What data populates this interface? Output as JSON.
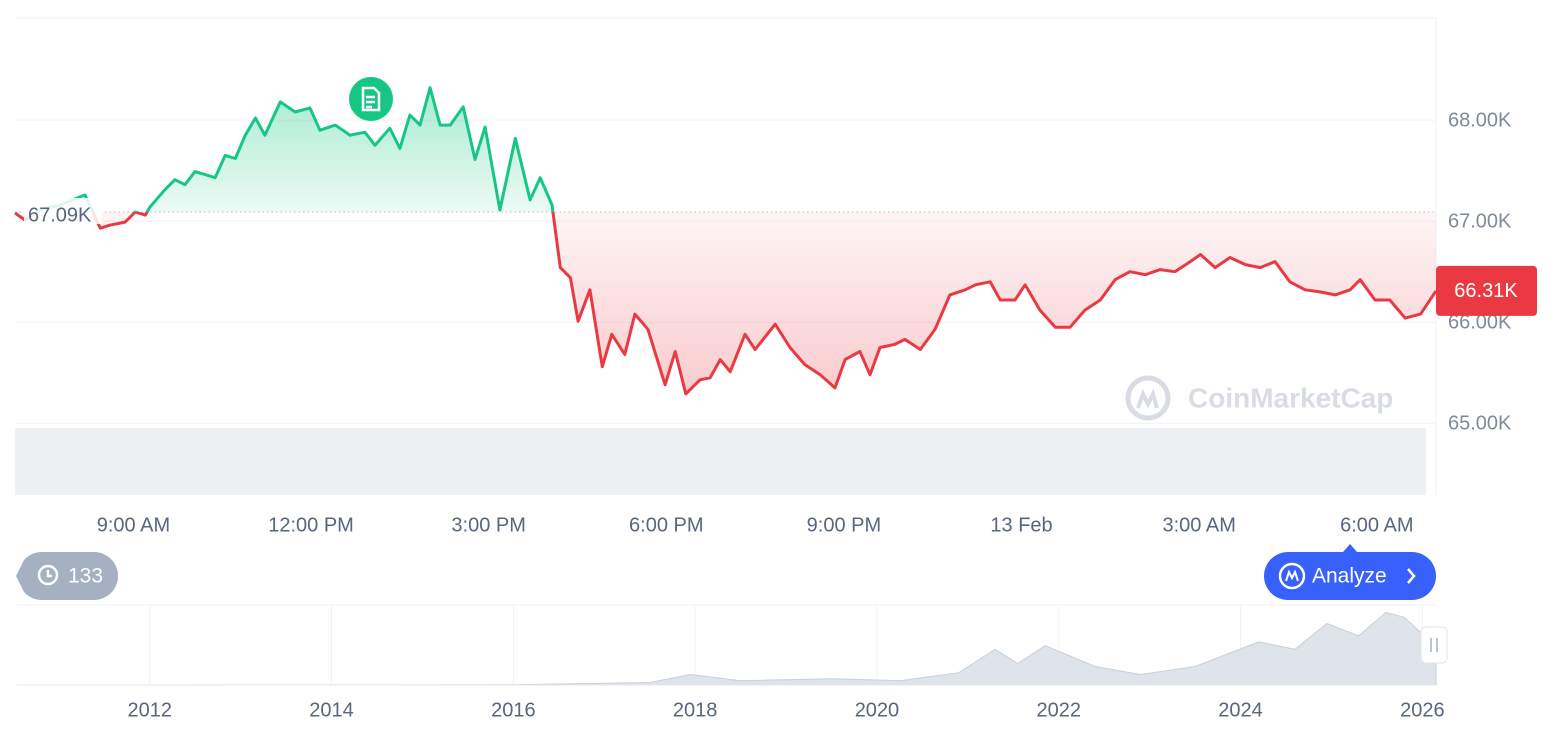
{
  "chart_data": [
    {
      "type": "line",
      "x": [
        7.0,
        7.17,
        7.42,
        7.76,
        8.18,
        8.44,
        8.6,
        8.86,
        9.03,
        9.2,
        9.28,
        9.53,
        9.7,
        9.87,
        10.04,
        10.21,
        10.38,
        10.55,
        10.72,
        10.89,
        11.06,
        11.22,
        11.48,
        11.73,
        11.98,
        12.15,
        12.41,
        12.66,
        12.91,
        13.08,
        13.33,
        13.5,
        13.67,
        13.84,
        14.01,
        14.18,
        14.35,
        14.57,
        14.77,
        14.94,
        15.19,
        15.45,
        15.7,
        15.87,
        16.07,
        16.21,
        16.38,
        16.51,
        16.71,
        16.92,
        17.08,
        17.3,
        17.47,
        17.69,
        17.98,
        18.15,
        18.33,
        18.57,
        18.74,
        18.91,
        19.08,
        19.33,
        19.5,
        19.84,
        20.09,
        20.34,
        20.6,
        20.85,
        21.02,
        21.27,
        21.44,
        21.61,
        21.86,
        22.03,
        22.29,
        22.54,
        22.79,
        23.05,
        23.22,
        23.47,
        23.64,
        23.89,
        24.06,
        24.31,
        24.57,
        24.82,
        25.07,
        25.33,
        25.58,
        25.83,
        26.09,
        26.34,
        26.59,
        26.85,
        27.02,
        27.27,
        27.52,
        27.78,
        28.03,
        28.28,
        28.53,
        28.79,
        29.04,
        29.3,
        29.55,
        29.72,
        29.97,
        30.22,
        30.48,
        30.74,
        31.0
      ],
      "values": [
        67080,
        67010,
        67110,
        67160,
        67260,
        66930,
        66960,
        66990,
        67090,
        67060,
        67140,
        67310,
        67410,
        67360,
        67490,
        67460,
        67430,
        67650,
        67620,
        67850,
        68020,
        67850,
        68180,
        68080,
        68120,
        67900,
        67950,
        67850,
        67880,
        67750,
        67920,
        67720,
        68050,
        67950,
        68320,
        67950,
        67950,
        68130,
        67610,
        67930,
        67110,
        67820,
        67210,
        67430,
        67160,
        66540,
        66440,
        66010,
        66320,
        65560,
        65880,
        65680,
        66080,
        65930,
        65380,
        65710,
        65290,
        65430,
        65450,
        65630,
        65510,
        65880,
        65730,
        65980,
        65750,
        65580,
        65480,
        65350,
        65630,
        65710,
        65480,
        65750,
        65780,
        65830,
        65730,
        65930,
        66270,
        66320,
        66370,
        66400,
        66220,
        66220,
        66370,
        66120,
        65950,
        65950,
        66120,
        66220,
        66420,
        66500,
        66470,
        66520,
        66500,
        66600,
        66670,
        66540,
        66640,
        66570,
        66540,
        66600,
        66400,
        66320,
        66300,
        66270,
        66320,
        66420,
        66220,
        66220,
        66040,
        66080,
        66310
      ],
      "up_color": "#16c784",
      "down_color": "#ea3943",
      "baseline": {
        "value": 67090,
        "label": "67.09K"
      },
      "last_label": {
        "value": 66310,
        "label": "66.31K"
      },
      "xlim": [
        7,
        31
      ],
      "xticks": [
        {
          "value": 9,
          "label": "9:00 AM"
        },
        {
          "value": 12,
          "label": "12:00 PM"
        },
        {
          "value": 15,
          "label": "3:00 PM"
        },
        {
          "value": 18,
          "label": "6:00 PM"
        },
        {
          "value": 21,
          "label": "9:00 PM"
        },
        {
          "value": 24,
          "label": "13 Feb"
        },
        {
          "value": 27,
          "label": "3:00 AM"
        },
        {
          "value": 30,
          "label": "6:00 AM"
        }
      ],
      "ylim": [
        64290,
        69010
      ],
      "yticks": [
        {
          "value": 65000,
          "label": "65.00K"
        },
        {
          "value": 66000,
          "label": "66.00K"
        },
        {
          "value": 67000,
          "label": "67.00K"
        },
        {
          "value": 68000,
          "label": "68.00K"
        }
      ],
      "grid": true
    },
    {
      "type": "area",
      "x": [
        2010.54,
        2013.0,
        2016.0,
        2017.5,
        2017.95,
        2018.5,
        2019.5,
        2020.25,
        2020.9,
        2021.3,
        2021.55,
        2021.85,
        2022.4,
        2022.9,
        2023.5,
        2024.2,
        2024.6,
        2024.95,
        2025.3,
        2025.6,
        2025.8,
        2026.05,
        2026.15
      ],
      "values": [
        0,
        200,
        400,
        4000,
        17000,
        7000,
        10000,
        7000,
        20000,
        58000,
        35000,
        64000,
        30000,
        17000,
        30000,
        70000,
        58000,
        100000,
        80000,
        118000,
        110000,
        76000,
        67000
      ],
      "color": "#dfe3ea",
      "xlim": [
        2010.54,
        2026.15
      ],
      "ylim": [
        0,
        130000
      ],
      "xticks": [
        2012,
        2014,
        2016,
        2018,
        2020,
        2022,
        2024,
        2026
      ]
    }
  ],
  "ui": {
    "history_count": 133,
    "analyze": "Analyze",
    "watermark": "CoinMarketCap"
  }
}
